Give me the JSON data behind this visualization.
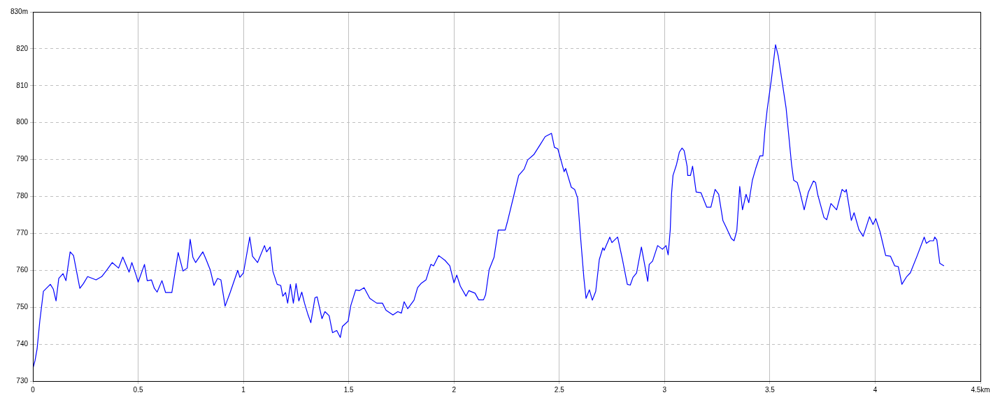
{
  "chart_data": {
    "type": "line",
    "marker": "none",
    "line_style": "solid",
    "grid": true,
    "legend": false,
    "xlim": [
      0,
      4.5
    ],
    "ylim": [
      730,
      830
    ],
    "xticks": [
      0,
      0.5,
      1,
      1.5,
      2,
      2.5,
      3,
      3.5,
      4,
      {
        "value": 4.5,
        "label": "4.5km"
      }
    ],
    "yticks": [
      730,
      740,
      750,
      760,
      770,
      780,
      790,
      800,
      810,
      820,
      {
        "value": 830,
        "label": "830m"
      }
    ],
    "x": [
      0,
      0.01,
      0.02,
      0.033,
      0.05,
      0.083,
      0.097,
      0.11,
      0.123,
      0.143,
      0.157,
      0.177,
      0.193,
      0.223,
      0.24,
      0.26,
      0.3,
      0.327,
      0.35,
      0.377,
      0.407,
      0.427,
      0.457,
      0.47,
      0.49,
      0.5,
      0.53,
      0.543,
      0.563,
      0.577,
      0.59,
      0.613,
      0.63,
      0.66,
      0.69,
      0.713,
      0.733,
      0.747,
      0.76,
      0.773,
      0.807,
      0.823,
      0.843,
      0.86,
      0.877,
      0.893,
      0.913,
      0.937,
      0.973,
      0.983,
      1.0,
      1.03,
      1.043,
      1.067,
      1.1,
      1.11,
      1.127,
      1.14,
      1.16,
      1.177,
      1.187,
      1.2,
      1.21,
      1.223,
      1.237,
      1.25,
      1.263,
      1.277,
      1.29,
      1.307,
      1.32,
      1.34,
      1.35,
      1.373,
      1.387,
      1.407,
      1.423,
      1.443,
      1.46,
      1.47,
      1.497,
      1.51,
      1.533,
      1.55,
      1.573,
      1.6,
      1.633,
      1.66,
      1.677,
      1.71,
      1.733,
      1.75,
      1.763,
      1.78,
      1.81,
      1.827,
      1.843,
      1.867,
      1.89,
      1.903,
      1.927,
      1.957,
      1.98,
      2.0,
      2.013,
      2.03,
      2.057,
      2.07,
      2.1,
      2.117,
      2.14,
      2.15,
      2.167,
      2.19,
      2.21,
      2.243,
      2.253,
      2.283,
      2.307,
      2.333,
      2.35,
      2.38,
      2.41,
      2.433,
      2.463,
      2.477,
      2.493,
      2.523,
      2.53,
      2.557,
      2.573,
      2.587,
      2.6,
      2.617,
      2.627,
      2.643,
      2.657,
      2.673,
      2.69,
      2.707,
      2.713,
      2.74,
      2.75,
      2.777,
      2.8,
      2.823,
      2.837,
      2.85,
      2.867,
      2.89,
      2.92,
      2.927,
      2.943,
      2.967,
      2.99,
      3.007,
      3.017,
      3.027,
      3.033,
      3.04,
      3.057,
      3.07,
      3.083,
      3.093,
      3.107,
      3.11,
      3.123,
      3.133,
      3.15,
      3.173,
      3.2,
      3.22,
      3.24,
      3.257,
      3.277,
      3.293,
      3.317,
      3.33,
      3.343,
      3.357,
      3.37,
      3.387,
      3.4,
      3.417,
      3.433,
      3.453,
      3.467,
      3.477,
      3.487,
      3.507,
      3.527,
      3.54,
      3.557,
      3.577,
      3.59,
      3.603,
      3.613,
      3.63,
      3.643,
      3.663,
      3.683,
      3.707,
      3.717,
      3.727,
      3.757,
      3.77,
      3.79,
      3.817,
      3.843,
      3.857,
      3.863,
      3.887,
      3.9,
      3.923,
      3.943,
      3.973,
      3.99,
      4.003,
      4.023,
      4.05,
      4.073,
      4.093,
      4.11,
      4.127,
      4.15,
      4.167,
      4.2,
      4.233,
      4.243,
      4.26,
      4.277,
      4.283,
      4.293,
      4.307,
      4.327
    ],
    "series": [
      {
        "color": "#0000ff",
        "values": [
          733.4,
          735.5,
          738.7,
          746.3,
          754.3,
          756.2,
          754.9,
          751.7,
          757.8,
          759.1,
          757.2,
          765,
          764,
          755.1,
          756.4,
          758.3,
          757.4,
          758.3,
          760,
          762.1,
          760.6,
          763.6,
          759.5,
          762.1,
          758.7,
          756.8,
          761.6,
          757.2,
          757.4,
          755.1,
          754.1,
          757.2,
          754,
          754,
          764.8,
          759.8,
          760.6,
          768.4,
          763.5,
          762.1,
          765,
          762.9,
          760,
          755.9,
          757.8,
          757.4,
          750.3,
          754,
          760,
          758.1,
          759.3,
          769,
          763.8,
          762.1,
          766.7,
          765,
          766.3,
          759.7,
          756.2,
          755.9,
          753,
          754,
          751.1,
          756.2,
          751.1,
          756.4,
          751.7,
          754.1,
          751.1,
          747.9,
          745.8,
          752.6,
          752.8,
          746.9,
          748.8,
          747.7,
          743.1,
          743.7,
          741.8,
          744.8,
          746.2,
          750.5,
          754.7,
          754.5,
          755.3,
          752.4,
          751.1,
          751.1,
          749.2,
          747.9,
          748.8,
          748.4,
          751.5,
          749.6,
          751.9,
          755.3,
          756.4,
          757.4,
          761.6,
          761.2,
          764,
          762.7,
          761.2,
          756.6,
          758.7,
          755.7,
          753,
          754.5,
          753.8,
          752,
          752,
          753.4,
          760.2,
          763.5,
          770.9,
          770.9,
          773,
          780,
          785.7,
          787.4,
          789.9,
          791.4,
          794.1,
          796.2,
          797.1,
          793.3,
          792.9,
          786.7,
          787.6,
          782.5,
          781.9,
          779.6,
          769.7,
          757.8,
          752.4,
          754.7,
          751.9,
          754.3,
          762.9,
          766.1,
          765.4,
          769,
          767.5,
          769,
          762.9,
          756.2,
          756,
          758.1,
          759.3,
          766.3,
          757,
          761.6,
          762.5,
          766.7,
          765.7,
          766.7,
          764.2,
          771,
          780.6,
          785.7,
          788.7,
          792,
          793.1,
          792.4,
          788.2,
          785.7,
          785.7,
          788.2,
          781.2,
          781,
          777.1,
          777.1,
          781.9,
          780.6,
          773.5,
          771.6,
          768.6,
          768,
          770.7,
          782.7,
          776.4,
          780.6,
          778.3,
          784.4,
          787.6,
          791,
          791,
          798.2,
          803.4,
          811.6,
          821.1,
          818,
          811.6,
          804,
          796.4,
          788.7,
          784.4,
          783.8,
          781.2,
          776.4,
          781.2,
          784.2,
          783.8,
          780.6,
          774.3,
          773.7,
          778.1,
          776.4,
          781.9,
          781.2,
          781.9,
          773.5,
          775.6,
          771,
          769.2,
          774.5,
          772.4,
          774,
          770.5,
          764,
          763.8,
          761.2,
          761,
          756.2,
          758.3,
          759.3,
          764,
          769,
          767.3,
          768,
          768,
          769,
          768.2,
          761.9,
          761.2
        ]
      }
    ]
  }
}
